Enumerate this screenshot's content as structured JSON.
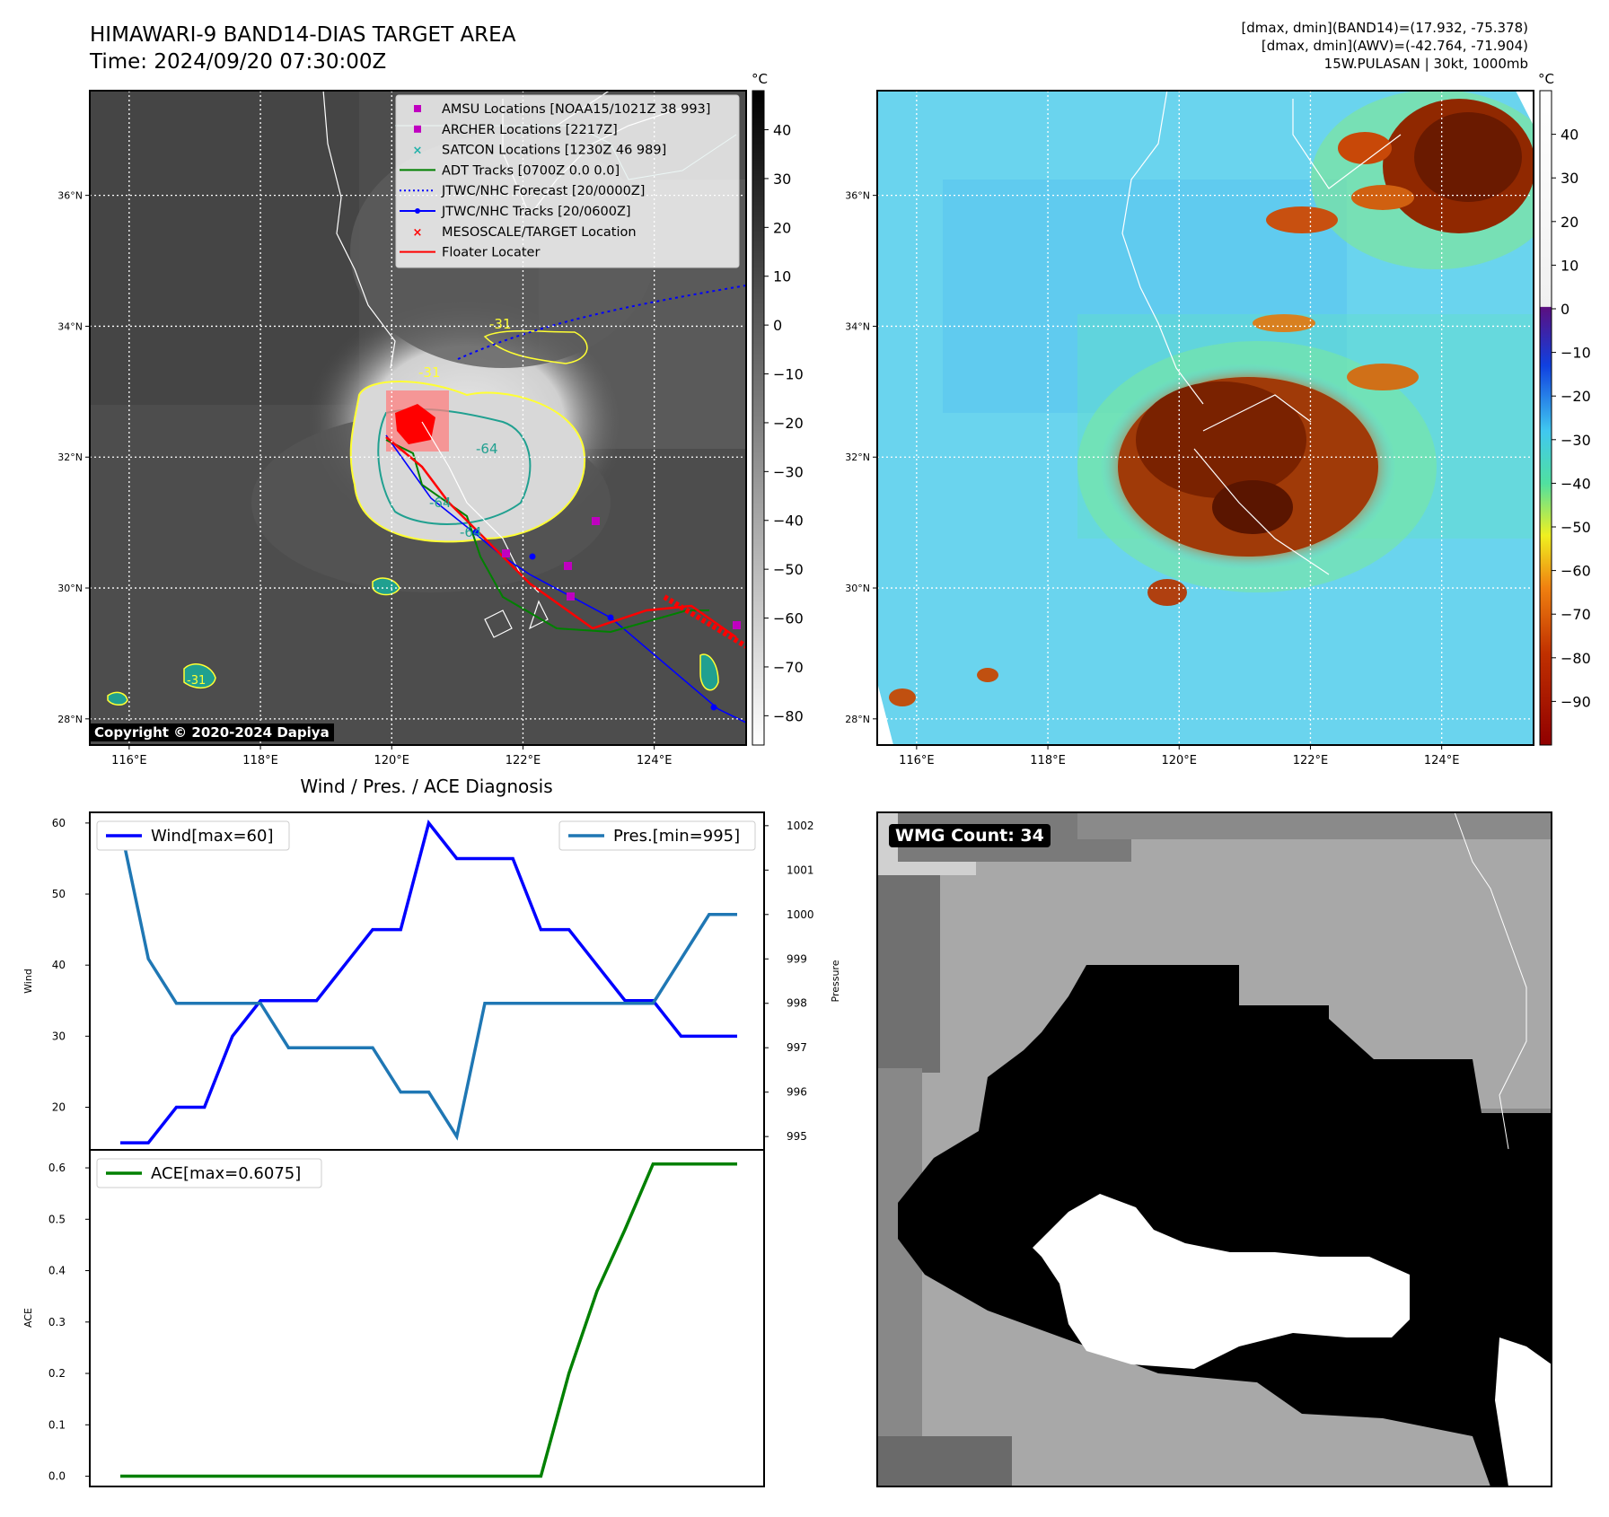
{
  "header": {
    "title_line1": "HIMAWARI-9 BAND14-DIAS TARGET AREA",
    "title_line2": "Time: 2024/09/20 07:30:00Z",
    "info_line1": "[dmax, dmin](BAND14)=(17.932, -75.378)",
    "info_line2": "[dmax, dmin](AWV)=(-42.764, -71.904)",
    "info_line3": "15W.PULASAN | 30kt, 1000mb"
  },
  "map_common": {
    "lat_labels": [
      "36°N",
      "34°N",
      "32°N",
      "30°N",
      "28°N"
    ],
    "lon_labels": [
      "116°E",
      "118°E",
      "120°E",
      "122°E",
      "124°E"
    ],
    "lats": [
      36,
      34,
      32,
      30,
      28
    ],
    "lons": [
      116,
      118,
      120,
      122,
      124
    ],
    "lon_range": [
      115.4,
      125.4
    ],
    "lat_range": [
      27.6,
      37.6
    ]
  },
  "ir_panel": {
    "colorbar_unit": "°C",
    "colorbar_ticks": [
      "40",
      "30",
      "20",
      "10",
      "0",
      "−10",
      "−20",
      "−30",
      "−40",
      "−50",
      "−60",
      "−70",
      "−80"
    ],
    "colorbar_values": [
      40,
      30,
      20,
      10,
      0,
      -10,
      -20,
      -30,
      -40,
      -50,
      -60,
      -70,
      -80
    ],
    "copyright": "Copyright © 2020-2024 Dapiya",
    "legend": [
      {
        "label": "AMSU Locations [NOAA15/1021Z 38 993]",
        "color": "#c000c0",
        "marker": "square"
      },
      {
        "label": "ARCHER Locations [2217Z]",
        "color": "#c000c0",
        "marker": "square"
      },
      {
        "label": "SATCON Locations [1230Z 46 989]",
        "color": "#20b2aa",
        "marker": "x"
      },
      {
        "label": "ADT Tracks [0700Z 0.0 0.0]",
        "color": "#008000",
        "marker": "line"
      },
      {
        "label": "JTWC/NHC Forecast [20/0000Z]",
        "color": "#0000ff",
        "marker": "dotted"
      },
      {
        "label": "JTWC/NHC Tracks [20/0600Z]",
        "color": "#0000ff",
        "marker": "line-dot"
      },
      {
        "label": "MESOSCALE/TARGET Location",
        "color": "#ff0000",
        "marker": "x"
      },
      {
        "label": "Floater Locater",
        "color": "#ff0000",
        "marker": "line"
      }
    ],
    "contour_labels": [
      "-31",
      "-31",
      "-64",
      "-64",
      "-64",
      "-31"
    ]
  },
  "awv_panel": {
    "colorbar_unit": "°C",
    "colorbar_ticks": [
      "40",
      "30",
      "20",
      "10",
      "0",
      "−10",
      "−20",
      "−30",
      "−40",
      "−50",
      "−60",
      "−70",
      "−80",
      "−90"
    ],
    "colorbar_values": [
      40,
      30,
      20,
      10,
      0,
      -10,
      -20,
      -30,
      -40,
      -50,
      -60,
      -70,
      -80,
      -90
    ]
  },
  "wmg_panel": {
    "label": "WMG Count: 34"
  },
  "chart_data": [
    {
      "type": "line",
      "title": "Wind / Pres. / ACE Diagnosis",
      "ylabel": "Wind",
      "y2label": "Pressure",
      "ylim": [
        14,
        61.5
      ],
      "y2lim": [
        994.7,
        1002.3
      ],
      "yticks": [
        20,
        30,
        40,
        50,
        60
      ],
      "y2ticks": [
        995,
        996,
        997,
        998,
        999,
        1000,
        1001,
        1002
      ],
      "x": [
        0,
        1,
        2,
        3,
        4,
        5,
        6,
        7,
        8,
        9,
        10,
        11,
        12,
        13,
        14,
        15,
        16,
        17,
        18,
        19,
        20,
        21,
        22
      ],
      "series": [
        {
          "name": "Wind[max=60]",
          "axis": "left",
          "color": "#0000ff",
          "values": [
            15,
            15,
            20,
            20,
            30,
            35,
            35,
            35,
            40,
            45,
            45,
            60,
            55,
            55,
            55,
            45,
            45,
            40,
            35,
            35,
            30,
            30,
            30
          ]
        },
        {
          "name": "Pres.[min=995]",
          "axis": "right",
          "color": "#1f77b4",
          "values": [
            1002,
            999,
            998,
            998,
            998,
            998,
            997,
            997,
            997,
            997,
            996,
            996,
            995,
            998,
            998,
            998,
            998,
            998,
            998,
            998,
            999,
            1000,
            1000
          ]
        }
      ]
    },
    {
      "type": "line",
      "ylabel": "ACE",
      "ylim": [
        -0.02,
        0.635
      ],
      "yticks": [
        "0.0",
        "0.1",
        "0.2",
        "0.3",
        "0.4",
        "0.5",
        "0.6"
      ],
      "ytick_values": [
        0,
        0.1,
        0.2,
        0.3,
        0.4,
        0.5,
        0.6
      ],
      "x": [
        0,
        1,
        2,
        3,
        4,
        5,
        6,
        7,
        8,
        9,
        10,
        11,
        12,
        13,
        14,
        15,
        16,
        17,
        18,
        19,
        20,
        21,
        22
      ],
      "series": [
        {
          "name": "ACE[max=0.6075]",
          "color": "#008000",
          "values": [
            0,
            0,
            0,
            0,
            0,
            0,
            0,
            0,
            0,
            0,
            0,
            0,
            0,
            0,
            0,
            0,
            0.2,
            0.36,
            0.48,
            0.6075,
            0.6075,
            0.6075,
            0.6075
          ]
        }
      ]
    }
  ]
}
